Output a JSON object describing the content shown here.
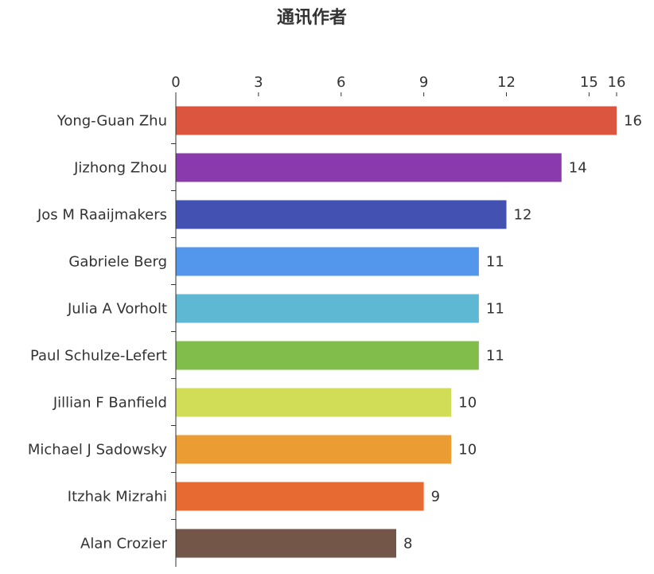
{
  "chart_data": {
    "type": "bar",
    "orientation": "horizontal",
    "title": "通讯作者",
    "categories": [
      "Yong-Guan Zhu",
      "Jizhong Zhou",
      "Jos M Raaijmakers",
      "Gabriele Berg",
      "Julia A Vorholt",
      "Paul Schulze-Lefert",
      "Jillian F Banfield",
      "Michael J Sadowsky",
      "Itzhak Mizrahi",
      "Alan Crozier"
    ],
    "values": [
      16,
      14,
      12,
      11,
      11,
      11,
      10,
      10,
      9,
      8
    ],
    "value_labels": [
      "16",
      "14",
      "12",
      "11",
      "11",
      "11",
      "10",
      "10",
      "9",
      "8"
    ],
    "colors": [
      "#dc563f",
      "#8a3aac",
      "#4352b2",
      "#5297ec",
      "#5eb7d3",
      "#80bd4a",
      "#d2dd57",
      "#eb9d33",
      "#e66a32",
      "#745649"
    ],
    "x_ticks": [
      0,
      3,
      6,
      9,
      12,
      15,
      16
    ],
    "x_tick_labels": [
      "0",
      "3",
      "6",
      "9",
      "12",
      "15",
      "16"
    ],
    "xlim": [
      0,
      16
    ],
    "x_axis_position": "top",
    "grid": false,
    "legend": "none"
  }
}
